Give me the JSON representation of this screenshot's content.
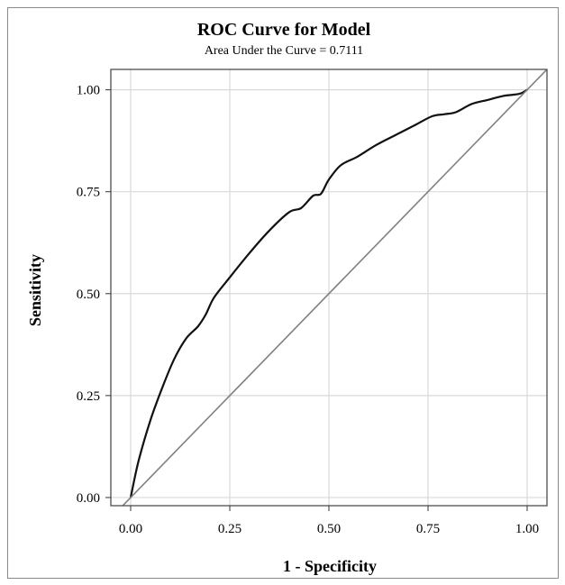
{
  "chart_data": {
    "type": "line",
    "title": "ROC Curve for Model",
    "subtitle": "Area Under the Curve = 0.7111",
    "xlabel": "1 - Specificity",
    "ylabel": "Sensitivity",
    "xlim": [
      -0.05,
      1.05
    ],
    "ylim": [
      -0.02,
      1.05
    ],
    "xticks": [
      "0.00",
      "0.25",
      "0.50",
      "0.75",
      "1.00"
    ],
    "yticks": [
      "0.00",
      "0.25",
      "0.50",
      "0.75",
      "1.00"
    ],
    "grid": true,
    "legend": "none",
    "series": [
      {
        "color": "#111111",
        "x": [
          0.0,
          0.02,
          0.05,
          0.08,
          0.11,
          0.14,
          0.17,
          0.19,
          0.21,
          0.25,
          0.3,
          0.35,
          0.4,
          0.43,
          0.46,
          0.48,
          0.5,
          0.53,
          0.57,
          0.62,
          0.67,
          0.72,
          0.76,
          0.79,
          0.82,
          0.86,
          0.9,
          0.94,
          0.98,
          1.0
        ],
        "y": [
          0.0,
          0.09,
          0.19,
          0.27,
          0.34,
          0.39,
          0.42,
          0.45,
          0.49,
          0.54,
          0.6,
          0.655,
          0.7,
          0.71,
          0.74,
          0.745,
          0.78,
          0.815,
          0.835,
          0.865,
          0.89,
          0.915,
          0.935,
          0.94,
          0.945,
          0.965,
          0.975,
          0.985,
          0.99,
          1.0
        ]
      },
      {
        "color": "#808080",
        "x": [
          -0.05,
          1.05
        ],
        "y": [
          -0.05,
          1.05
        ]
      }
    ]
  }
}
